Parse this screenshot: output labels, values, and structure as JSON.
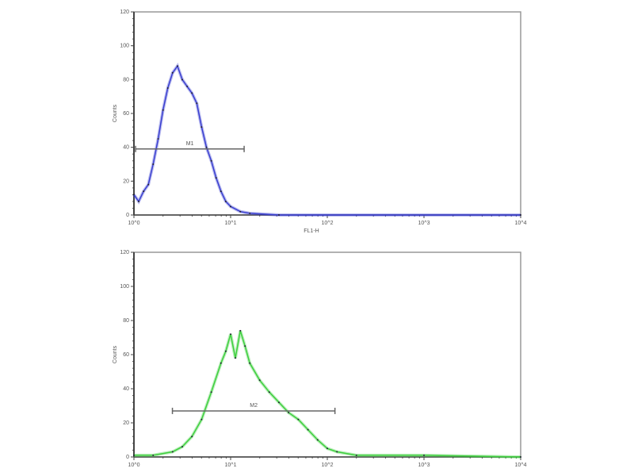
{
  "chart_data": [
    {
      "type": "area",
      "xscale": "log",
      "xlim": [
        1,
        10000
      ],
      "ylim": [
        0,
        120
      ],
      "xticks": [
        "10^0",
        "10^1",
        "10^2",
        "10^3",
        "10^4"
      ],
      "yticks": [
        "0",
        "20",
        "40",
        "60",
        "80",
        "100",
        "120"
      ],
      "xlabel": "FL1-H",
      "ylabel": "Counts",
      "color": "#3a3fd0",
      "x": [
        1,
        1.12,
        1.26,
        1.41,
        1.58,
        1.78,
        2.0,
        2.24,
        2.51,
        2.82,
        3.16,
        3.55,
        3.98,
        4.47,
        5.01,
        5.62,
        6.31,
        7.08,
        7.94,
        8.91,
        10,
        12.6,
        15.8,
        31.6,
        10000
      ],
      "y": [
        12,
        8,
        14,
        18,
        30,
        45,
        62,
        75,
        84,
        88,
        80,
        76,
        72,
        66,
        52,
        40,
        32,
        22,
        14,
        8,
        5,
        2,
        1,
        0,
        0
      ],
      "gate": {
        "label": "M1",
        "x": [
          1.04,
          13.8
        ],
        "y": 39
      }
    },
    {
      "type": "area",
      "xscale": "log",
      "xlim": [
        1,
        10000
      ],
      "ylim": [
        0,
        120
      ],
      "xticks": [
        "10^0",
        "10^1",
        "10^2",
        "10^3",
        "10^4"
      ],
      "yticks": [
        "0",
        "20",
        "40",
        "60",
        "80",
        "100",
        "120"
      ],
      "ylabel": "Counts",
      "color": "#3ecf3e",
      "x": [
        1,
        1.58,
        2.51,
        3.16,
        3.98,
        5.01,
        6.31,
        7.94,
        8.91,
        10,
        11.2,
        12.6,
        14.1,
        15.8,
        20,
        25.1,
        31.6,
        39.8,
        50.1,
        63.1,
        79.4,
        100,
        126,
        200,
        1000,
        10000
      ],
      "y": [
        1,
        1,
        3,
        6,
        12,
        22,
        38,
        55,
        62,
        72,
        58,
        74,
        65,
        55,
        45,
        38,
        32,
        26,
        22,
        16,
        10,
        5,
        3,
        1,
        1,
        0
      ],
      "gate": {
        "label": "M2",
        "x": [
          2.5,
          120
        ],
        "y": 27
      }
    }
  ]
}
